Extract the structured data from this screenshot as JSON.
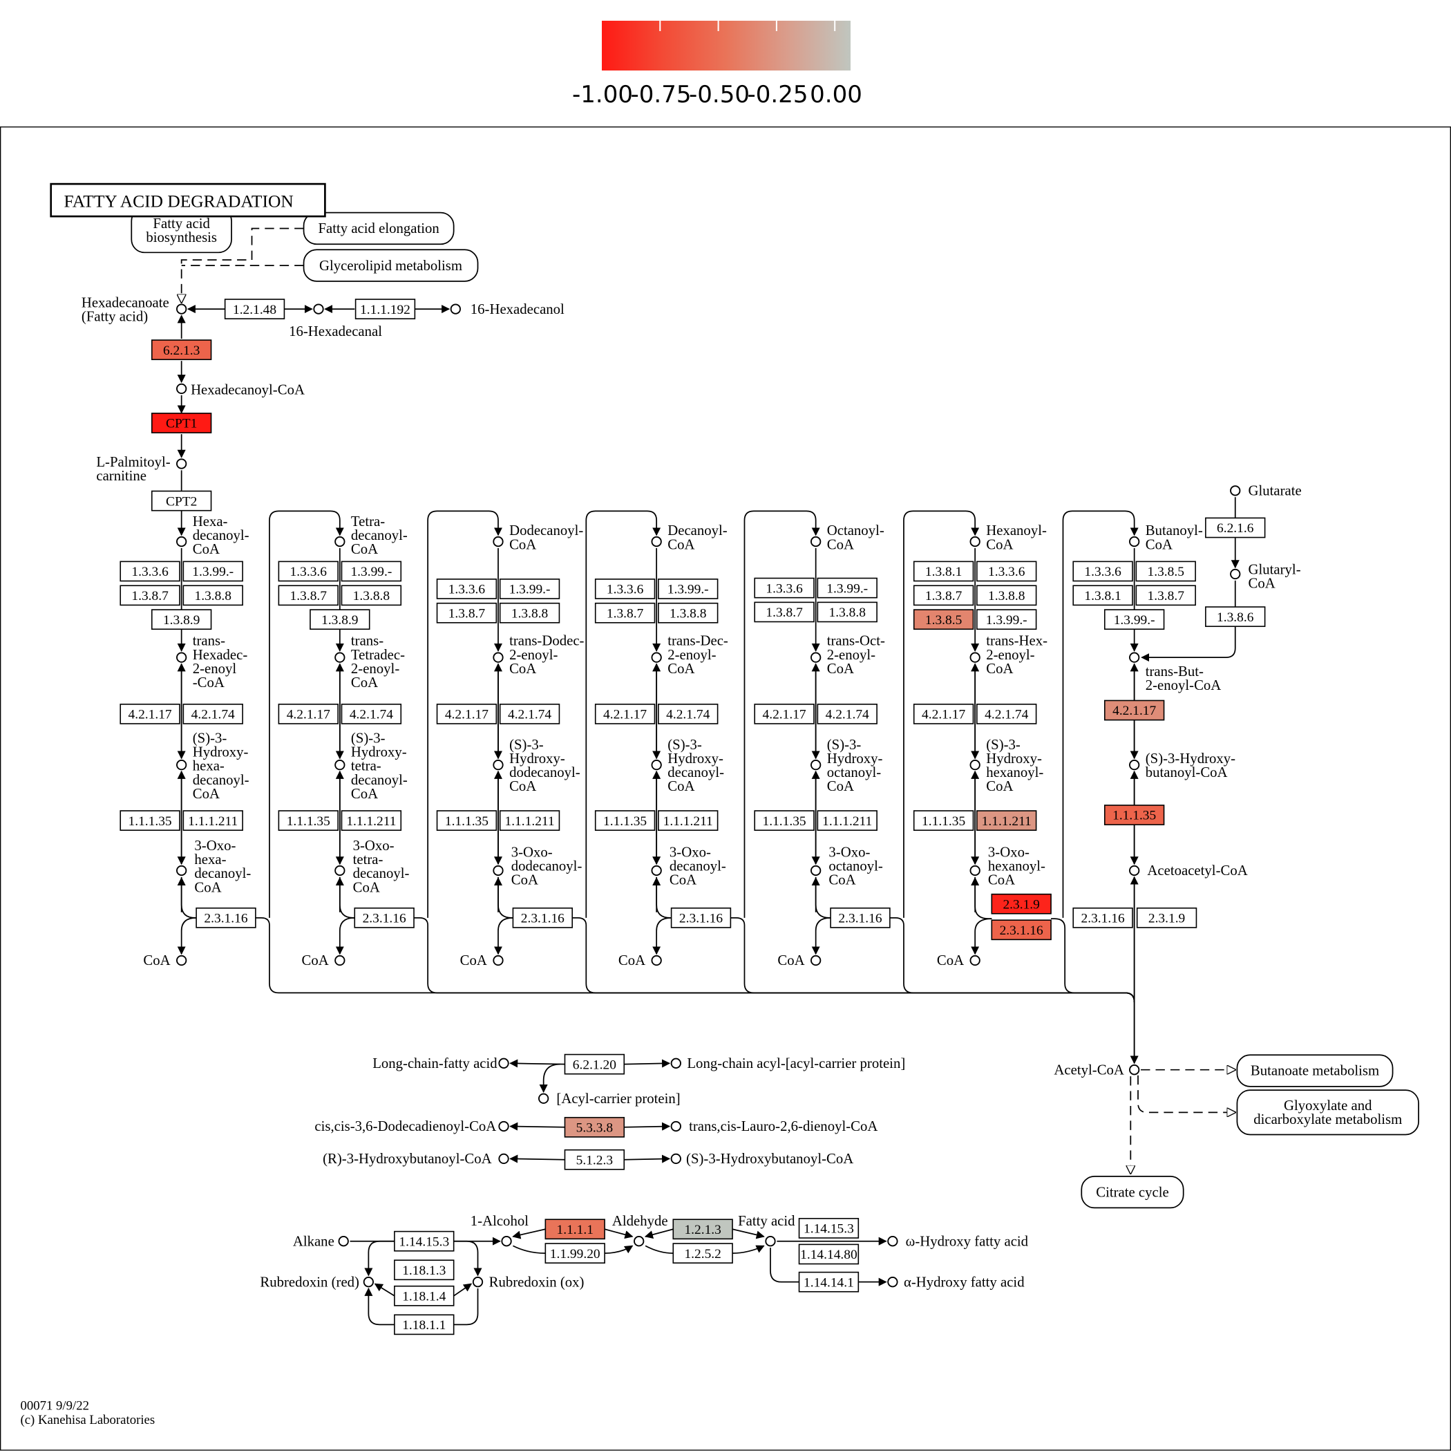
{
  "legend": {
    "ticks": [
      "-1.00",
      "-0.75",
      "-0.50",
      "-0.25",
      "0.00"
    ],
    "colors": [
      "#ff1a14",
      "#f34b36",
      "#e97459",
      "#d99e8d",
      "#c0c6bf"
    ]
  },
  "diagram": {
    "title": "FATTY ACID DEGRADATION",
    "footer": {
      "line1": "00071 9/9/22",
      "line2": "(c) Kanehisa Laboratories"
    },
    "pathways": {
      "fab": [
        "Fatty acid",
        "biosynthesis"
      ],
      "elong": [
        "Fatty acid elongation"
      ],
      "glyc": [
        "Glycerolipid metabolism"
      ],
      "butan": [
        "Butanoate metabolism"
      ],
      "glyox": [
        "Glyoxylate and",
        "dicarboxylate metabolism"
      ],
      "citrate": [
        "Citrate cycle"
      ]
    },
    "compounds": {
      "hexadecanoate": [
        "Hexadecanoate",
        "(Fatty acid)"
      ],
      "hexadecanal": [
        "16-Hexadecanal"
      ],
      "hexadecanol": [
        "16-Hexadecanol"
      ],
      "hexadecanoylcoa": [
        "Hexadecanoyl-CoA"
      ],
      "palmitoylcarnitine": [
        "L-Palmitoyl-",
        "carnitine"
      ],
      "glutarate": [
        "Glutarate"
      ],
      "glutarylcoa": [
        "Glutaryl-",
        "CoA"
      ],
      "acetoacetylcoa": [
        "Acetoacetyl-CoA"
      ],
      "acetylcoa": [
        "Acetyl-CoA"
      ],
      "lcfa": [
        "Long-chain-fatty acid"
      ],
      "lcacp": [
        "Long-chain acyl-[acyl-carrier protein]"
      ],
      "acp": [
        "[Acyl-carrier protein]"
      ],
      "dodecadienoyl": [
        "cis,cis-3,6-Dodecadienoyl-CoA"
      ],
      "lauro": [
        "trans,cis-Lauro-2,6-dienoyl-CoA"
      ],
      "r3hb": [
        "(R)-3-Hydroxybutanoyl-CoA"
      ],
      "s3hb": [
        "(S)-3-Hydroxybutanoyl-CoA"
      ],
      "alkane": [
        "Alkane"
      ],
      "alcohol": [
        "1-Alcohol"
      ],
      "aldehyde": [
        "Aldehyde"
      ],
      "fattyacid2": [
        "Fatty acid"
      ],
      "omega": [
        "ω-Hydroxy fatty acid"
      ],
      "alpha": [
        "α-Hydroxy fatty acid"
      ],
      "rubred": [
        "Rubredoxin (red)"
      ],
      "rubox": [
        "Rubredoxin (ox)"
      ]
    },
    "columns": [
      {
        "acyl": [
          "Hexa-",
          "decanoyl-",
          "CoA"
        ],
        "enoyl": [
          "trans-",
          "Hexadec-",
          "2-enoyl",
          "-CoA"
        ],
        "hydroxy": [
          "(S)-3-",
          "Hydroxy-",
          "hexa-",
          "decanoyl-",
          "CoA"
        ],
        "oxo": [
          "3-Oxo-",
          "hexa-",
          "decanoyl-",
          "CoA"
        ],
        "coa": "CoA"
      },
      {
        "acyl": [
          "Tetra-",
          "decanoyl-",
          "CoA"
        ],
        "enoyl": [
          "trans-",
          "Tetradec-",
          "2-enoyl-",
          "CoA"
        ],
        "hydroxy": [
          "(S)-3-",
          "Hydroxy-",
          "tetra-",
          "decanoyl-",
          "CoA"
        ],
        "oxo": [
          "3-Oxo-",
          "tetra-",
          "decanoyl-",
          "CoA"
        ],
        "coa": "CoA"
      },
      {
        "acyl": [
          "Dodecanoyl-",
          "CoA"
        ],
        "enoyl": [
          "trans-Dodec-",
          "2-enoyl-",
          "CoA"
        ],
        "hydroxy": [
          "(S)-3-",
          "Hydroxy-",
          "dodecanoyl-",
          "CoA"
        ],
        "oxo": [
          "3-Oxo-",
          "dodecanoyl-",
          "CoA"
        ],
        "coa": "CoA"
      },
      {
        "acyl": [
          "Decanoyl-",
          "CoA"
        ],
        "enoyl": [
          "trans-Dec-",
          "2-enoyl-",
          "CoA"
        ],
        "hydroxy": [
          "(S)-3-",
          "Hydroxy-",
          "decanoyl-",
          "CoA"
        ],
        "oxo": [
          "3-Oxo-",
          "decanoyl-",
          "CoA"
        ],
        "coa": "CoA"
      },
      {
        "acyl": [
          "Octanoyl-",
          "CoA"
        ],
        "enoyl": [
          "trans-Oct-",
          "2-enoyl-",
          "CoA"
        ],
        "hydroxy": [
          "(S)-3-",
          "Hydroxy-",
          "octanoyl-",
          "CoA"
        ],
        "oxo": [
          "3-Oxo-",
          "octanoyl-",
          "CoA"
        ],
        "coa": "CoA"
      },
      {
        "acyl": [
          "Hexanoyl-",
          "CoA"
        ],
        "enoyl": [
          "trans-Hex-",
          "2-enoyl-",
          "CoA"
        ],
        "hydroxy": [
          "(S)-3-",
          "Hydroxy-",
          "hexanoyl-",
          "CoA"
        ],
        "oxo": [
          "3-Oxo-",
          "hexanoyl-",
          "CoA"
        ],
        "coa": "CoA"
      },
      {
        "acyl": [
          "Butanoyl-",
          "CoA"
        ],
        "enoyl": [
          "trans-But-",
          "2-enoyl-CoA"
        ],
        "hydroxy": [
          "(S)-3-Hydroxy-",
          "butanoyl-CoA"
        ],
        "oxo": [],
        "coa": ""
      }
    ],
    "enzymes": {
      "e6213": {
        "label": "6.2.1.3",
        "value": -0.6
      },
      "cpt1": {
        "label": "CPT1",
        "value": -1.0
      },
      "cpt2": {
        "label": "CPT2"
      },
      "e12148": {
        "label": "1.2.1.48"
      },
      "e111192": {
        "label": "1.1.1.192"
      },
      "e6216": {
        "label": "6.2.1.6"
      },
      "e1386": {
        "label": "1.3.8.6"
      },
      "e62120": {
        "label": "6.2.1.20"
      },
      "e5338": {
        "label": "5.3.3.8",
        "value": -0.3
      },
      "e5123": {
        "label": "5.1.2.3"
      },
      "e14153a": {
        "label": "1.14.15.3"
      },
      "e11813": {
        "label": "1.18.1.3"
      },
      "e11814": {
        "label": "1.18.1.4"
      },
      "e11811": {
        "label": "1.18.1.1"
      },
      "e1111": {
        "label": "1.1.1.1",
        "value": -0.5
      },
      "e119920": {
        "label": "1.1.99.20"
      },
      "e1213": {
        "label": "1.2.1.3",
        "value": 0.0
      },
      "e1252": {
        "label": "1.2.5.2"
      },
      "e14153b": {
        "label": "1.14.15.3"
      },
      "e114140": {
        "label": "1.14.14.80"
      },
      "e114141": {
        "label": "1.14.14.1"
      },
      "c0_a": {
        "label": "1.3.3.6"
      },
      "c0_b": {
        "label": "1.3.99.-"
      },
      "c0_c": {
        "label": "1.3.8.7"
      },
      "c0_d": {
        "label": "1.3.8.8"
      },
      "c0_e": {
        "label": "1.3.8.9"
      },
      "c0_h1": {
        "label": "4.2.1.17"
      },
      "c0_h2": {
        "label": "4.2.1.74"
      },
      "c0_d1": {
        "label": "1.1.1.35"
      },
      "c0_d2": {
        "label": "1.1.1.211"
      },
      "c0_t": {
        "label": "2.3.1.16"
      },
      "c1_a": {
        "label": "1.3.3.6"
      },
      "c1_b": {
        "label": "1.3.99.-"
      },
      "c1_c": {
        "label": "1.3.8.7"
      },
      "c1_d": {
        "label": "1.3.8.8"
      },
      "c1_e": {
        "label": "1.3.8.9"
      },
      "c1_h1": {
        "label": "4.2.1.17"
      },
      "c1_h2": {
        "label": "4.2.1.74"
      },
      "c1_d1": {
        "label": "1.1.1.35"
      },
      "c1_d2": {
        "label": "1.1.1.211"
      },
      "c1_t": {
        "label": "2.3.1.16"
      },
      "c2_a": {
        "label": "1.3.3.6"
      },
      "c2_b": {
        "label": "1.3.99.-"
      },
      "c2_c": {
        "label": "1.3.8.7"
      },
      "c2_d": {
        "label": "1.3.8.8"
      },
      "c2_h1": {
        "label": "4.2.1.17"
      },
      "c2_h2": {
        "label": "4.2.1.74"
      },
      "c2_d1": {
        "label": "1.1.1.35"
      },
      "c2_d2": {
        "label": "1.1.1.211"
      },
      "c2_t": {
        "label": "2.3.1.16"
      },
      "c3_a": {
        "label": "1.3.3.6"
      },
      "c3_b": {
        "label": "1.3.99.-"
      },
      "c3_c": {
        "label": "1.3.8.7"
      },
      "c3_d": {
        "label": "1.3.8.8"
      },
      "c3_h1": {
        "label": "4.2.1.17"
      },
      "c3_h2": {
        "label": "4.2.1.74"
      },
      "c3_d1": {
        "label": "1.1.1.35"
      },
      "c3_d2": {
        "label": "1.1.1.211"
      },
      "c3_t": {
        "label": "2.3.1.16"
      },
      "c4_a": {
        "label": "1.3.3.6"
      },
      "c4_b": {
        "label": "1.3.99.-"
      },
      "c4_c": {
        "label": "1.3.8.7"
      },
      "c4_d": {
        "label": "1.3.8.8"
      },
      "c4_h1": {
        "label": "4.2.1.17"
      },
      "c4_h2": {
        "label": "4.2.1.74"
      },
      "c4_d1": {
        "label": "1.1.1.35"
      },
      "c4_d2": {
        "label": "1.1.1.211"
      },
      "c4_t": {
        "label": "2.3.1.16"
      },
      "c5_a": {
        "label": "1.3.8.1"
      },
      "c5_b": {
        "label": "1.3.3.6"
      },
      "c5_c": {
        "label": "1.3.8.7"
      },
      "c5_d": {
        "label": "1.3.8.8"
      },
      "c5_e": {
        "label": "1.3.8.5",
        "value": -0.4
      },
      "c5_f": {
        "label": "1.3.99.-"
      },
      "c5_h1": {
        "label": "4.2.1.17"
      },
      "c5_h2": {
        "label": "4.2.1.74"
      },
      "c5_d1": {
        "label": "1.1.1.35"
      },
      "c5_d2": {
        "label": "1.1.1.211",
        "value": -0.3
      },
      "c5_t1": {
        "label": "2.3.1.9",
        "value": -0.95
      },
      "c5_t2": {
        "label": "2.3.1.16",
        "value": -0.6
      },
      "c6_a": {
        "label": "1.3.3.6"
      },
      "c6_b": {
        "label": "1.3.8.5"
      },
      "c6_c": {
        "label": "1.3.8.1"
      },
      "c6_d": {
        "label": "1.3.8.7"
      },
      "c6_e": {
        "label": "1.3.99.-"
      },
      "c6_h": {
        "label": "4.2.1.17",
        "value": -0.35
      },
      "c6_dh": {
        "label": "1.1.1.35",
        "value": -0.6
      },
      "c6_t1": {
        "label": "2.3.1.16"
      },
      "c6_t2": {
        "label": "2.3.1.9"
      }
    }
  }
}
